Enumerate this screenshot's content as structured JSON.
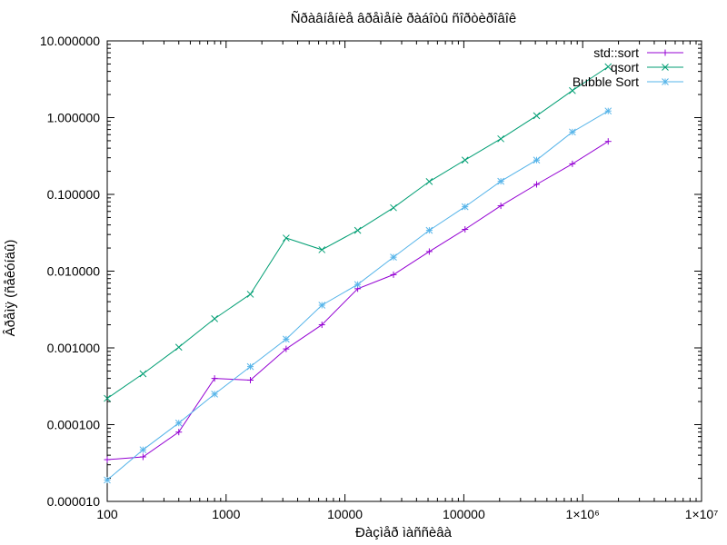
{
  "chart_data": {
    "type": "line",
    "title": "Ñðàâíåíèå âðåìåíè ðàáîòû ñîðòèðîâîê",
    "xlabel": "Ðàçìåð ìàññèâà",
    "ylabel": "Âðåìÿ (ñåêóíäû)",
    "xscale": "log",
    "yscale": "log",
    "xlim": [
      100,
      10000000
    ],
    "ylim": [
      1e-05,
      10
    ],
    "grid": false,
    "legend_position": "top-right",
    "x_ticks": [
      {
        "value": 100,
        "label": "100"
      },
      {
        "value": 1000,
        "label": "1000"
      },
      {
        "value": 10000,
        "label": "10000"
      },
      {
        "value": 100000,
        "label": "100000"
      },
      {
        "value": 1000000,
        "label": "1×10⁶"
      },
      {
        "value": 10000000,
        "label": "1×10⁷"
      }
    ],
    "y_ticks": [
      {
        "value": 1e-05,
        "label": "0.000010"
      },
      {
        "value": 0.0001,
        "label": "0.000100"
      },
      {
        "value": 0.001,
        "label": "0.001000"
      },
      {
        "value": 0.01,
        "label": "0.010000"
      },
      {
        "value": 0.1,
        "label": "0.100000"
      },
      {
        "value": 1,
        "label": "1.000000"
      },
      {
        "value": 10,
        "label": "10.000000"
      }
    ],
    "x": [
      100,
      200,
      400,
      800,
      1600,
      3200,
      6400,
      12800,
      25600,
      51200,
      102400,
      204800,
      409600,
      819200,
      1638400
    ],
    "series": [
      {
        "name": "std::sort",
        "color": "#9400d3",
        "marker": "plus",
        "values": [
          3.5e-05,
          3.8e-05,
          8e-05,
          0.0004,
          0.00038,
          0.00097,
          0.002,
          0.0059,
          0.009,
          0.018,
          0.035,
          0.071,
          0.135,
          0.25,
          0.49
        ]
      },
      {
        "name": "qsort",
        "color": "#009e73",
        "marker": "cross",
        "values": [
          0.00022,
          0.00046,
          0.00102,
          0.0024,
          0.005,
          0.027,
          0.019,
          0.034,
          0.067,
          0.147,
          0.28,
          0.53,
          1.06,
          2.25,
          4.6
        ]
      },
      {
        "name": "Bubble Sort",
        "color": "#56b4e9",
        "marker": "star",
        "values": [
          1.9e-05,
          4.7e-05,
          0.000105,
          0.00025,
          0.00057,
          0.0013,
          0.0036,
          0.0067,
          0.0152,
          0.034,
          0.069,
          0.148,
          0.28,
          0.65,
          1.22
        ]
      }
    ]
  }
}
